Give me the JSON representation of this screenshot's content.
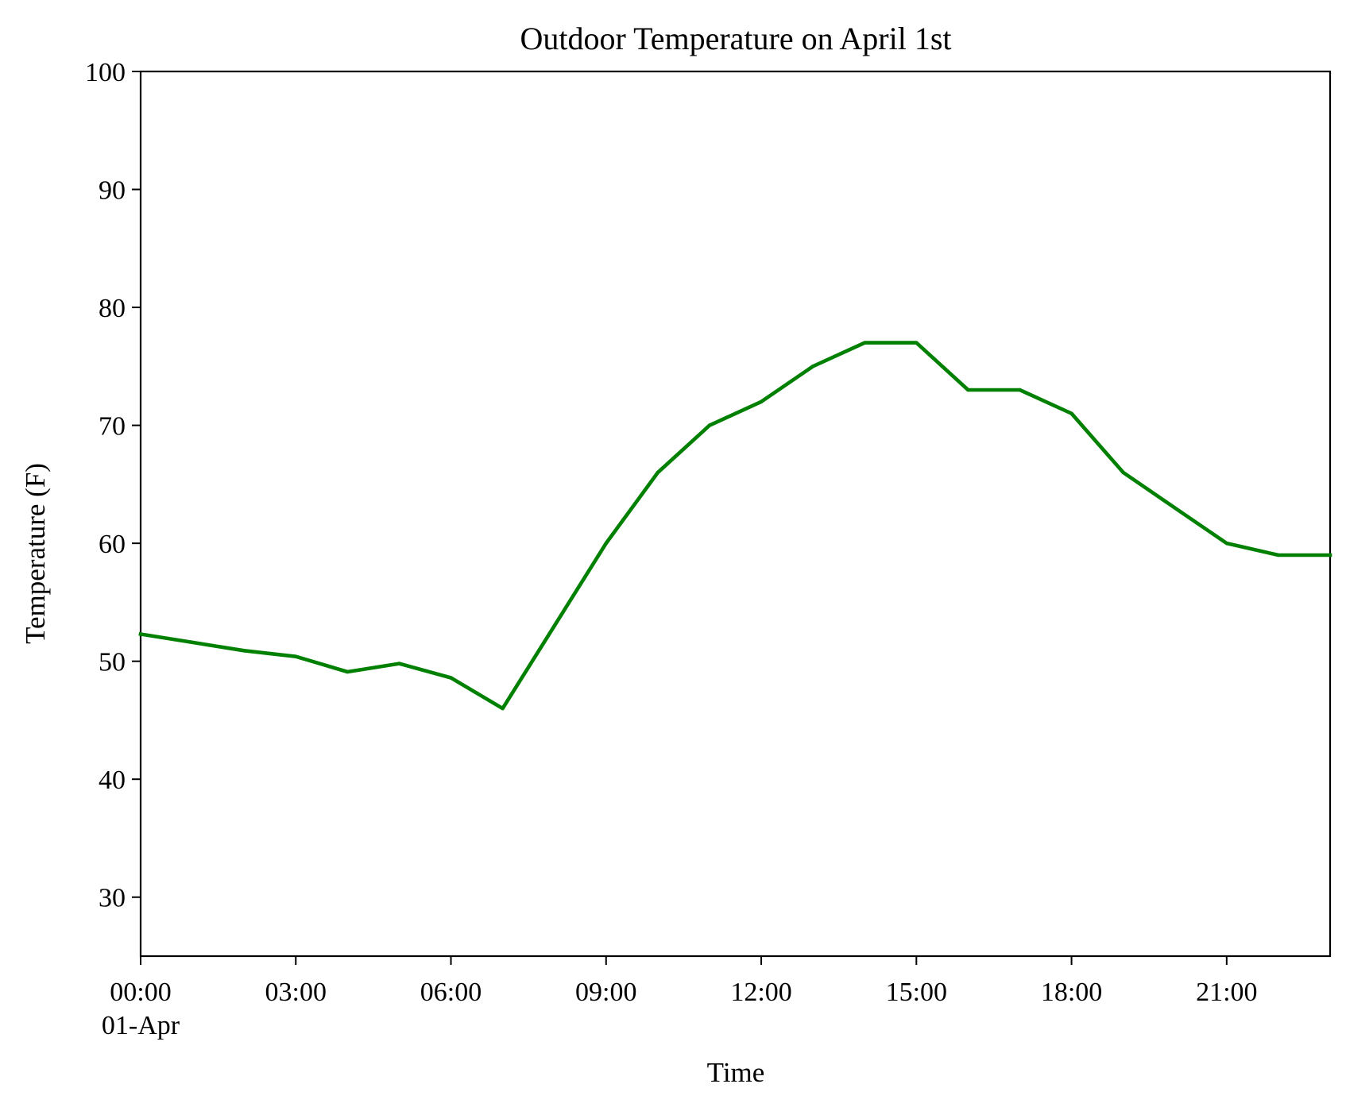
{
  "chart_data": {
    "type": "line",
    "title": "Outdoor Temperature on April 1st",
    "xlabel": "Time",
    "ylabel": "Temperature (F)",
    "x_ticks": [
      {
        "hour": 0,
        "label": "00:00",
        "sublabel": "01-Apr"
      },
      {
        "hour": 3,
        "label": "03:00"
      },
      {
        "hour": 6,
        "label": "06:00"
      },
      {
        "hour": 9,
        "label": "09:00"
      },
      {
        "hour": 12,
        "label": "12:00"
      },
      {
        "hour": 15,
        "label": "15:00"
      },
      {
        "hour": 18,
        "label": "18:00"
      },
      {
        "hour": 21,
        "label": "21:00"
      }
    ],
    "y_ticks": [
      30,
      40,
      50,
      60,
      70,
      80,
      90,
      100
    ],
    "xlim": [
      0,
      23
    ],
    "ylim": [
      25,
      100
    ],
    "grid": false,
    "legend": "none",
    "series": [
      {
        "color": "#008000",
        "x": [
          "00:00",
          "01:00",
          "02:00",
          "03:00",
          "04:00",
          "05:00",
          "06:00",
          "07:00",
          "08:00",
          "09:00",
          "10:00",
          "11:00",
          "12:00",
          "13:00",
          "14:00",
          "15:00",
          "16:00",
          "17:00",
          "18:00",
          "19:00",
          "20:00",
          "21:00",
          "22:00",
          "23:00"
        ],
        "values": [
          52.3,
          51.6,
          50.9,
          50.4,
          49.1,
          49.8,
          48.6,
          46.0,
          53.0,
          60.0,
          66.0,
          70.0,
          72.0,
          75.0,
          77.0,
          77.0,
          73.0,
          73.0,
          71.0,
          66.0,
          63.0,
          60.0,
          59.0,
          59.0
        ]
      }
    ]
  }
}
